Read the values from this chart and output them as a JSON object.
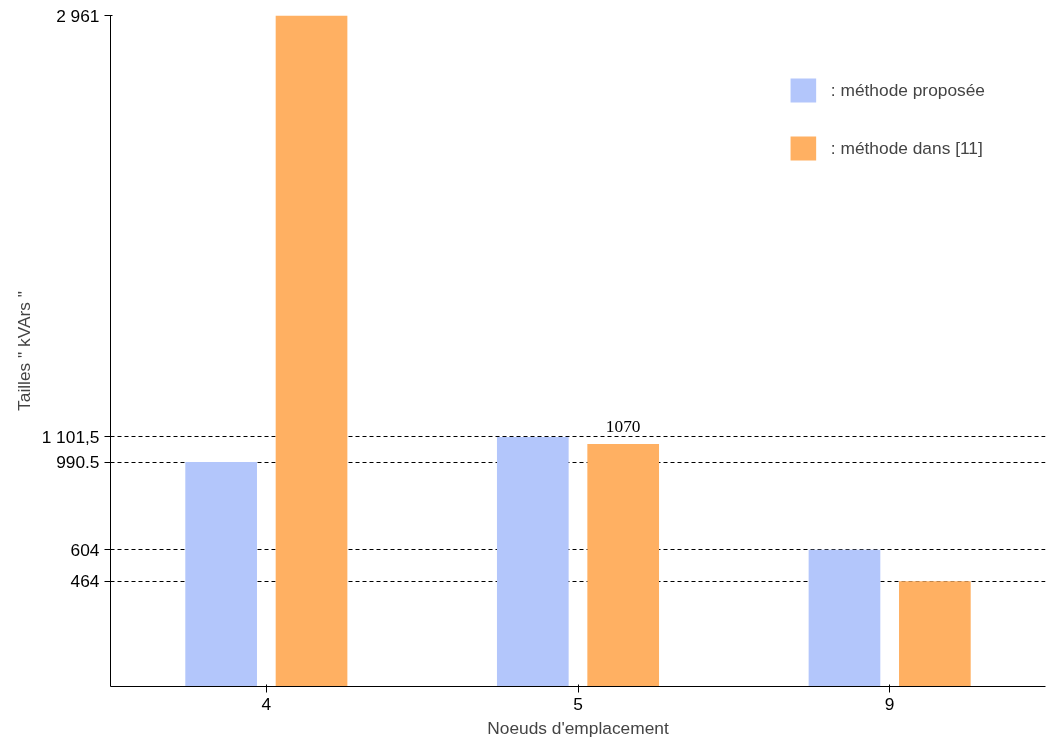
{
  "chart_data": {
    "type": "bar",
    "xlabel": "Noeuds d'emplacement",
    "ylabel": "Tailles \" kVArs \"",
    "categories": [
      "4",
      "5",
      "9"
    ],
    "series": [
      {
        "name": ": méthode proposée",
        "color": "#b3c6fb",
        "values": [
          990.5,
          1101.5,
          604
        ]
      },
      {
        "name": ": méthode dans [11]",
        "color": "#ffb062",
        "values": [
          2961,
          1070,
          464
        ],
        "value_labels": [
          null,
          "1070",
          null
        ]
      }
    ],
    "ylim": [
      0,
      2961
    ],
    "yticks": [
      464,
      604,
      {
        "value": 990.5,
        "label": "990.5"
      },
      {
        "value": 1101.5,
        "label": "1 101,5"
      },
      {
        "value": 2961,
        "label": "2 961"
      }
    ],
    "grid": "y",
    "legend": "top right"
  }
}
